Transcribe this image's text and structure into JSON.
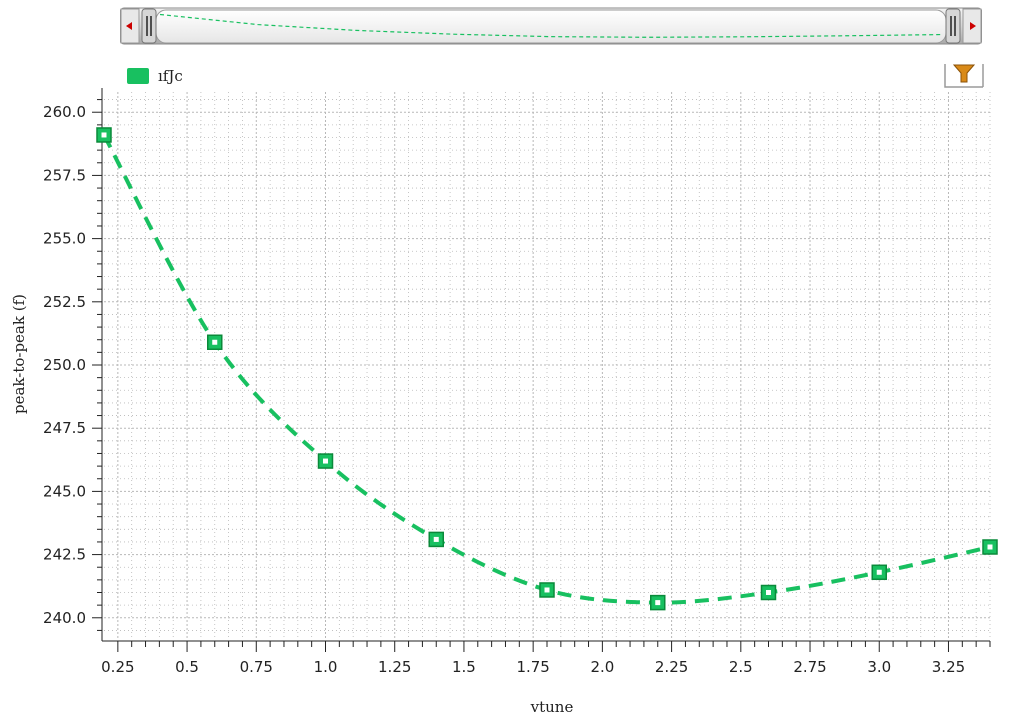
{
  "legend": {
    "label": "ıfJc"
  },
  "colors": {
    "series": "#18c060",
    "marker_border": "#0a8a3a",
    "grid": "#b8b8b8",
    "nav_scroll_arrow": "#cc0000",
    "filter_icon": "#d98a18"
  },
  "icons": {
    "scroll_left": "triangle-left-icon",
    "scroll_right": "triangle-right-icon",
    "filter": "filter-funnel-icon"
  },
  "chart_data": {
    "type": "line",
    "xlabel": "vtune",
    "ylabel": "peak-to-peak (f)",
    "xlim": [
      0.2,
      3.4
    ],
    "ylim": [
      239.2,
      260.8
    ],
    "x_ticks": [
      "0.25",
      "0.5",
      "0.75",
      "1.0",
      "1.25",
      "1.5",
      "1.75",
      "2.0",
      "2.25",
      "2.5",
      "2.75",
      "3.0",
      "3.25"
    ],
    "y_ticks": [
      "240.0",
      "242.5",
      "245.0",
      "247.5",
      "250.0",
      "252.5",
      "255.0",
      "257.5",
      "260.0"
    ],
    "grid": true,
    "legend_position": "top-left",
    "line_style": "dashed",
    "marker": "square",
    "series": [
      {
        "name": "ıfJc",
        "x": [
          0.2,
          0.6,
          1.0,
          1.4,
          1.8,
          2.2,
          2.6,
          3.0,
          3.4
        ],
        "y": [
          259.1,
          250.9,
          246.2,
          243.1,
          241.1,
          240.6,
          241.0,
          241.8,
          242.8
        ]
      }
    ]
  }
}
